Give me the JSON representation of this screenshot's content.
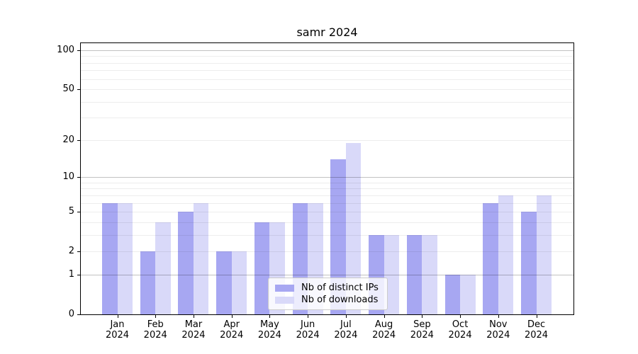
{
  "window": {
    "title": "samr 2024"
  },
  "chart_data": {
    "type": "bar",
    "title": "samr 2024",
    "y_scale": "log10(1+x)",
    "months": [
      "Jan",
      "Feb",
      "Mar",
      "Apr",
      "May",
      "Jun",
      "Jul",
      "Aug",
      "Sep",
      "Oct",
      "Nov",
      "Dec"
    ],
    "year": "2024",
    "series": [
      {
        "name": "Nb of distinct IPs",
        "color": "#a7a7f2",
        "values": [
          6,
          2,
          5,
          2,
          4,
          6,
          14,
          3,
          3,
          1,
          6,
          5
        ]
      },
      {
        "name": "Nb of downloads",
        "color": "#d9d9f9",
        "values": [
          6,
          4,
          6,
          2,
          4,
          6,
          19,
          3,
          3,
          1,
          7,
          7
        ]
      }
    ],
    "y_axis": {
      "tick_labels": [
        0,
        1,
        2,
        5,
        10,
        20,
        50,
        100
      ],
      "major_gridlines": [
        1,
        10,
        100
      ],
      "minor_gridlines": [
        2,
        3,
        4,
        5,
        6,
        7,
        8,
        9,
        20,
        30,
        40,
        50,
        60,
        70,
        80,
        90
      ],
      "max_value": 113
    },
    "legend": {
      "entries": [
        "Nb of distinct IPs",
        "Nb of downloads"
      ],
      "position": "lower center"
    },
    "grid": true,
    "colors": {
      "background": "#ffffff",
      "spine": "#000000",
      "text": "#000000",
      "major_grid": "#bdbdbd",
      "minor_grid": "#ececec"
    }
  }
}
